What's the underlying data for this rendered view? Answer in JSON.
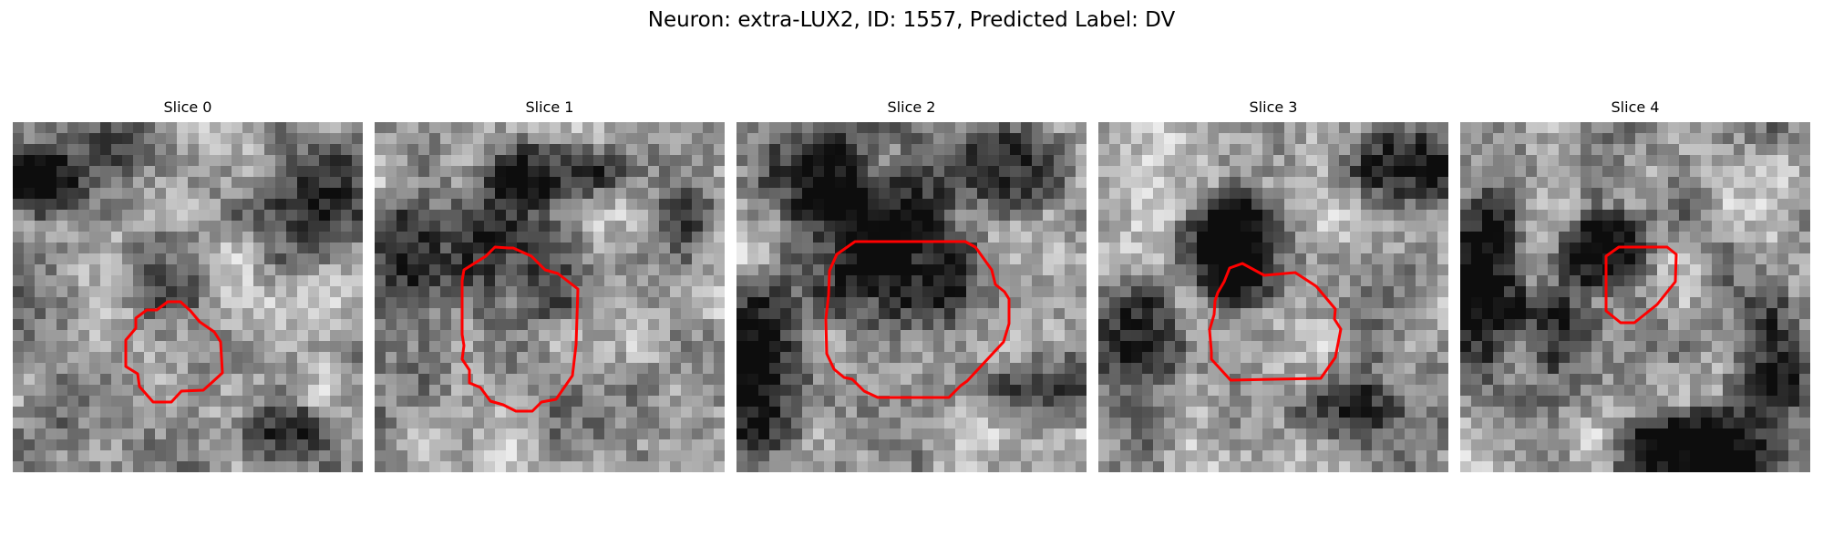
{
  "figure": {
    "title": "Neuron: extra-LUX2, ID: 1557, Predicted Label: DV"
  },
  "colors": {
    "outline": "#ff0000",
    "background": "#ffffff"
  },
  "panels": [
    {
      "title": "Slice 0"
    },
    {
      "title": "Slice 1"
    },
    {
      "title": "Slice 2"
    },
    {
      "title": "Slice 3"
    },
    {
      "title": "Slice 4"
    }
  ]
}
